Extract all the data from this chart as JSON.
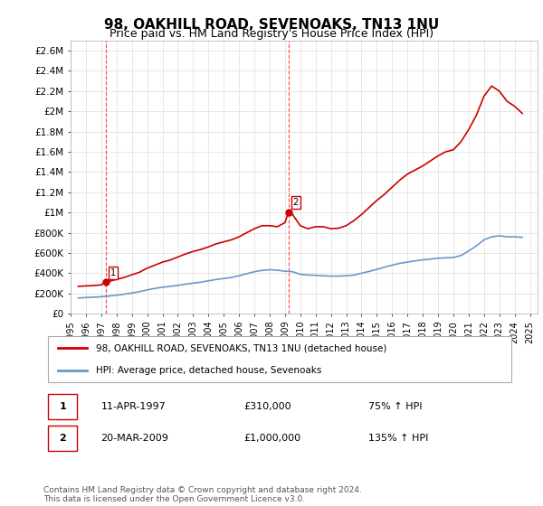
{
  "title": "98, OAKHILL ROAD, SEVENOAKS, TN13 1NU",
  "subtitle": "Price paid vs. HM Land Registry's House Price Index (HPI)",
  "title_fontsize": 11,
  "subtitle_fontsize": 9,
  "xlabel": "",
  "ylabel": "",
  "ylim": [
    0,
    2700000
  ],
  "xlim_start": 1995.0,
  "xlim_end": 2025.5,
  "yticks": [
    0,
    200000,
    400000,
    600000,
    800000,
    1000000,
    1200000,
    1400000,
    1600000,
    1800000,
    2000000,
    2200000,
    2400000,
    2600000
  ],
  "ytick_labels": [
    "£0",
    "£200K",
    "£400K",
    "£600K",
    "£800K",
    "£1M",
    "£1.2M",
    "£1.4M",
    "£1.6M",
    "£1.8M",
    "£2M",
    "£2.2M",
    "£2.4M",
    "£2.6M"
  ],
  "background_color": "#ffffff",
  "grid_color": "#dddddd",
  "red_line_color": "#cc0000",
  "blue_line_color": "#6699cc",
  "vline_color": "#ff4444",
  "transaction1_year": 1997.28,
  "transaction1_price": 310000,
  "transaction1_label": "1",
  "transaction2_year": 2009.22,
  "transaction2_price": 1000000,
  "transaction2_label": "2",
  "legend_red_label": "98, OAKHILL ROAD, SEVENOAKS, TN13 1NU (detached house)",
  "legend_blue_label": "HPI: Average price, detached house, Sevenoaks",
  "annotation1_date": "11-APR-1997",
  "annotation1_price": "£310,000",
  "annotation1_hpi": "75% ↑ HPI",
  "annotation2_date": "20-MAR-2009",
  "annotation2_price": "£1,000,000",
  "annotation2_hpi": "135% ↑ HPI",
  "footer": "Contains HM Land Registry data © Crown copyright and database right 2024.\nThis data is licensed under the Open Government Licence v3.0.",
  "xtick_years": [
    1995,
    1996,
    1997,
    1998,
    1999,
    2000,
    2001,
    2002,
    2003,
    2004,
    2005,
    2006,
    2007,
    2008,
    2009,
    2010,
    2011,
    2012,
    2013,
    2014,
    2015,
    2016,
    2017,
    2018,
    2019,
    2020,
    2021,
    2022,
    2023,
    2024,
    2025
  ],
  "red_x": [
    1995.5,
    1996.0,
    1996.5,
    1997.0,
    1997.28,
    1997.5,
    1998.0,
    1998.5,
    1999.0,
    1999.5,
    2000.0,
    2000.5,
    2001.0,
    2001.5,
    2002.0,
    2002.5,
    2003.0,
    2003.5,
    2004.0,
    2004.5,
    2005.0,
    2005.5,
    2006.0,
    2006.5,
    2007.0,
    2007.5,
    2008.0,
    2008.5,
    2009.0,
    2009.22,
    2009.5,
    2010.0,
    2010.5,
    2011.0,
    2011.5,
    2012.0,
    2012.5,
    2013.0,
    2013.5,
    2014.0,
    2014.5,
    2015.0,
    2015.5,
    2016.0,
    2016.5,
    2017.0,
    2017.5,
    2018.0,
    2018.5,
    2019.0,
    2019.5,
    2020.0,
    2020.5,
    2021.0,
    2021.5,
    2022.0,
    2022.5,
    2023.0,
    2023.5,
    2024.0,
    2024.5
  ],
  "red_y": [
    270000,
    275000,
    278000,
    285000,
    310000,
    318000,
    340000,
    358000,
    385000,
    410000,
    450000,
    480000,
    510000,
    530000,
    560000,
    590000,
    615000,
    635000,
    660000,
    690000,
    710000,
    730000,
    760000,
    800000,
    840000,
    870000,
    870000,
    860000,
    900000,
    1000000,
    980000,
    870000,
    840000,
    860000,
    860000,
    840000,
    845000,
    870000,
    920000,
    980000,
    1050000,
    1120000,
    1180000,
    1250000,
    1320000,
    1380000,
    1420000,
    1460000,
    1510000,
    1560000,
    1600000,
    1620000,
    1700000,
    1820000,
    1960000,
    2150000,
    2250000,
    2200000,
    2100000,
    2050000,
    1980000
  ],
  "blue_x": [
    1995.5,
    1996.0,
    1996.5,
    1997.0,
    1997.5,
    1998.0,
    1998.5,
    1999.0,
    1999.5,
    2000.0,
    2000.5,
    2001.0,
    2001.5,
    2002.0,
    2002.5,
    2003.0,
    2003.5,
    2004.0,
    2004.5,
    2005.0,
    2005.5,
    2006.0,
    2006.5,
    2007.0,
    2007.5,
    2008.0,
    2008.5,
    2009.0,
    2009.5,
    2010.0,
    2010.5,
    2011.0,
    2011.5,
    2012.0,
    2012.5,
    2013.0,
    2013.5,
    2014.0,
    2014.5,
    2015.0,
    2015.5,
    2016.0,
    2016.5,
    2017.0,
    2017.5,
    2018.0,
    2018.5,
    2019.0,
    2019.5,
    2020.0,
    2020.5,
    2021.0,
    2021.5,
    2022.0,
    2022.5,
    2023.0,
    2023.5,
    2024.0,
    2024.5
  ],
  "blue_y": [
    155000,
    160000,
    163000,
    168000,
    175000,
    183000,
    193000,
    205000,
    218000,
    235000,
    250000,
    262000,
    270000,
    280000,
    292000,
    302000,
    312000,
    325000,
    338000,
    348000,
    358000,
    375000,
    395000,
    415000,
    428000,
    435000,
    430000,
    420000,
    415000,
    390000,
    382000,
    380000,
    375000,
    372000,
    372000,
    375000,
    382000,
    400000,
    418000,
    438000,
    460000,
    480000,
    498000,
    510000,
    522000,
    532000,
    540000,
    548000,
    552000,
    555000,
    575000,
    620000,
    670000,
    730000,
    760000,
    770000,
    760000,
    760000,
    755000
  ]
}
